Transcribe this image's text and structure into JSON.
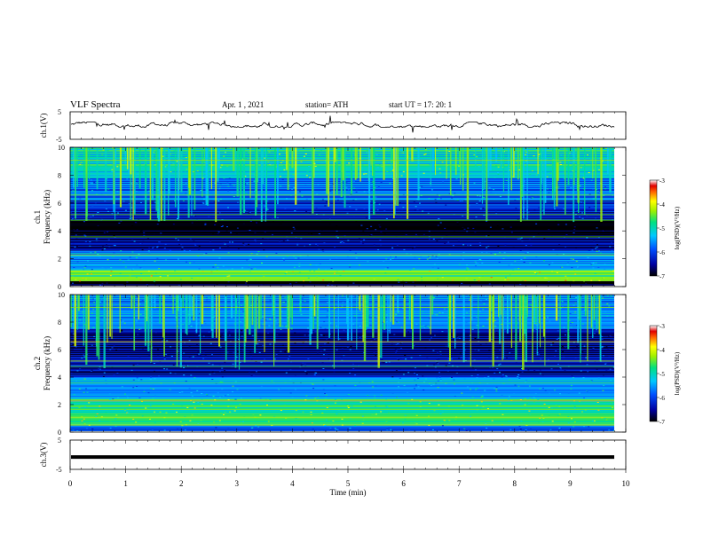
{
  "header": {
    "title": "VLF Spectra",
    "date": "Apr. 1 , 2021",
    "station": "station= ATH",
    "start": "start UT = 17: 20: 1"
  },
  "chart_data": [
    {
      "type": "line",
      "panel": "ch1-waveform",
      "ylabel": "ch.1(V)",
      "yticks": [
        "5",
        "-5"
      ],
      "ylim": [
        -5,
        5
      ],
      "x_range_min": [
        0,
        9.8
      ],
      "values_note_shown": false,
      "series": [
        {
          "values": [
            0.2,
            0.4,
            0.1,
            0.5,
            0.3,
            0.6,
            0.2,
            0.4
          ]
        }
      ]
    },
    {
      "type": "heatmap",
      "panel": "ch1-spectrogram",
      "ylabel": "ch.1\nFrequency (kHz)",
      "yticks": [
        "0",
        "2",
        "4",
        "6",
        "8",
        "10"
      ],
      "ylim": [
        0,
        10
      ],
      "colorbar": {
        "label": "log(PSD)(V²/Hz)",
        "ticks": [
          "-3",
          "-4",
          "-5",
          "-6",
          "-7"
        ],
        "range": [
          -7,
          -3
        ]
      },
      "bands_khz": [
        {
          "from": 0,
          "to": 0.4,
          "level": -7
        },
        {
          "from": 0.4,
          "to": 1.2,
          "level": -4.5
        },
        {
          "from": 1.2,
          "to": 2.6,
          "level": -5.6
        },
        {
          "from": 2.6,
          "to": 3.6,
          "level": -6.5
        },
        {
          "from": 3.6,
          "to": 4.8,
          "level": -7
        },
        {
          "from": 4.8,
          "to": 6.2,
          "level": -6.3
        },
        {
          "from": 6.2,
          "to": 7.8,
          "level": -5.8
        },
        {
          "from": 7.8,
          "to": 10,
          "level": -5.0
        }
      ]
    },
    {
      "type": "heatmap",
      "panel": "ch2-spectrogram",
      "ylabel": "ch.2\nFrequency (kHz)",
      "yticks": [
        "0",
        "2",
        "4",
        "6",
        "8",
        "10"
      ],
      "ylim": [
        0,
        10
      ],
      "colorbar": {
        "label": "log(PSD)(V²/Hz)",
        "ticks": [
          "-3",
          "-4",
          "-5",
          "-6",
          "-7"
        ],
        "range": [
          -7,
          -3
        ]
      },
      "bands_khz": [
        {
          "from": 0,
          "to": 0.5,
          "level": -6
        },
        {
          "from": 0.5,
          "to": 2.4,
          "level": -4.8
        },
        {
          "from": 2.4,
          "to": 4.0,
          "level": -5.6
        },
        {
          "from": 4.0,
          "to": 5.6,
          "level": -6.4
        },
        {
          "from": 5.6,
          "to": 7.5,
          "level": -6.6
        },
        {
          "from": 7.5,
          "to": 10,
          "level": -5.6
        }
      ]
    },
    {
      "type": "line",
      "panel": "ch3-waveform",
      "ylabel": "ch.3(V)",
      "yticks": [
        "5",
        "-5"
      ],
      "ylim": [
        -5,
        5
      ],
      "xlabel": "Time (min)",
      "xticks": [
        "0",
        "1",
        "2",
        "3",
        "4",
        "5",
        "6",
        "7",
        "8",
        "9",
        "10"
      ],
      "xlim": [
        0,
        10
      ],
      "series": [
        {
          "values": [
            -0.8,
            -0.8,
            -0.8,
            -0.8,
            -0.8,
            -0.8,
            -0.8,
            -0.8,
            -0.8,
            -0.8
          ]
        }
      ]
    }
  ]
}
